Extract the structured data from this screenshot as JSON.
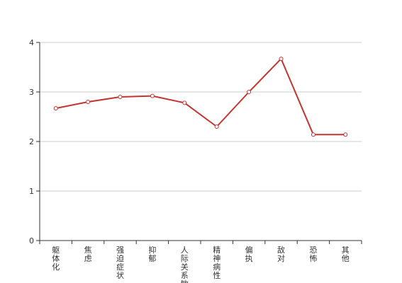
{
  "chart_data": {
    "type": "line",
    "categories": [
      "躯体化",
      "焦虑",
      "强迫症状",
      "抑郁",
      "人际关系敏感",
      "精神病性",
      "偏执",
      "敌对",
      "恐怖",
      "其他"
    ],
    "series": [
      {
        "values": [
          2.67,
          2.8,
          2.9,
          2.92,
          2.78,
          2.3,
          3.0,
          3.67,
          2.14,
          2.14
        ],
        "color": "#c23531"
      }
    ],
    "yticks": [
      0,
      1,
      2,
      3,
      4
    ],
    "ylim": [
      0,
      4
    ],
    "grid": true,
    "title": "",
    "xlabel": "",
    "ylabel": ""
  }
}
